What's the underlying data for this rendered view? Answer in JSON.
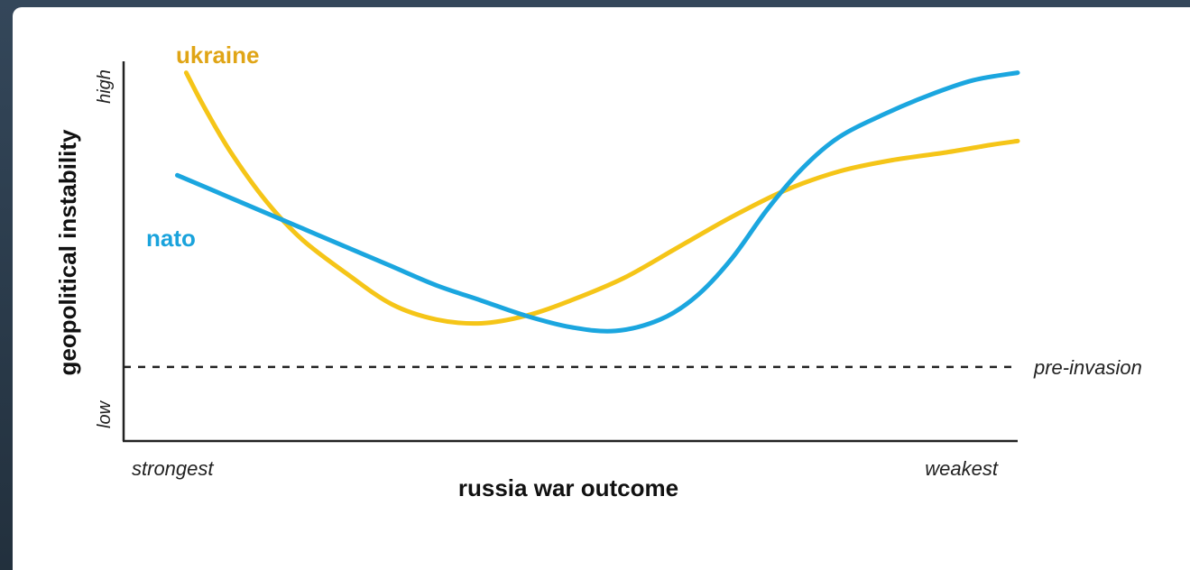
{
  "chart_data": {
    "type": "line",
    "title": "",
    "xlabel": "russia war outcome",
    "ylabel": "geopolitical instability",
    "x_range": [
      0,
      1
    ],
    "y_range": [
      0,
      1
    ],
    "x_end_labels": {
      "left": "strongest",
      "right": "weakest"
    },
    "y_end_labels": {
      "bottom": "low",
      "top": "high"
    },
    "reference_line": {
      "label": "pre-invasion",
      "y": 0.195,
      "style": "dashed"
    },
    "series": [
      {
        "name": "ukraine",
        "color": "#f5c518",
        "label_color": "#e0a516",
        "x": [
          0.07,
          0.09,
          0.12,
          0.16,
          0.2,
          0.25,
          0.3,
          0.35,
          0.4,
          0.45,
          0.5,
          0.56,
          0.62,
          0.68,
          0.74,
          0.8,
          0.86,
          0.92,
          0.97,
          1.0
        ],
        "y": [
          0.97,
          0.88,
          0.76,
          0.63,
          0.53,
          0.44,
          0.36,
          0.32,
          0.31,
          0.33,
          0.37,
          0.43,
          0.51,
          0.59,
          0.66,
          0.71,
          0.74,
          0.76,
          0.78,
          0.79
        ]
      },
      {
        "name": "nato",
        "color": "#1ba6df",
        "label_color": "#1aa3dc",
        "x": [
          0.06,
          0.1,
          0.15,
          0.2,
          0.25,
          0.3,
          0.35,
          0.4,
          0.45,
          0.5,
          0.55,
          0.6,
          0.64,
          0.68,
          0.72,
          0.76,
          0.8,
          0.85,
          0.9,
          0.95,
          1.0
        ],
        "y": [
          0.7,
          0.66,
          0.61,
          0.56,
          0.51,
          0.46,
          0.41,
          0.37,
          0.33,
          0.3,
          0.29,
          0.32,
          0.38,
          0.48,
          0.61,
          0.72,
          0.8,
          0.86,
          0.91,
          0.95,
          0.97
        ]
      }
    ]
  }
}
